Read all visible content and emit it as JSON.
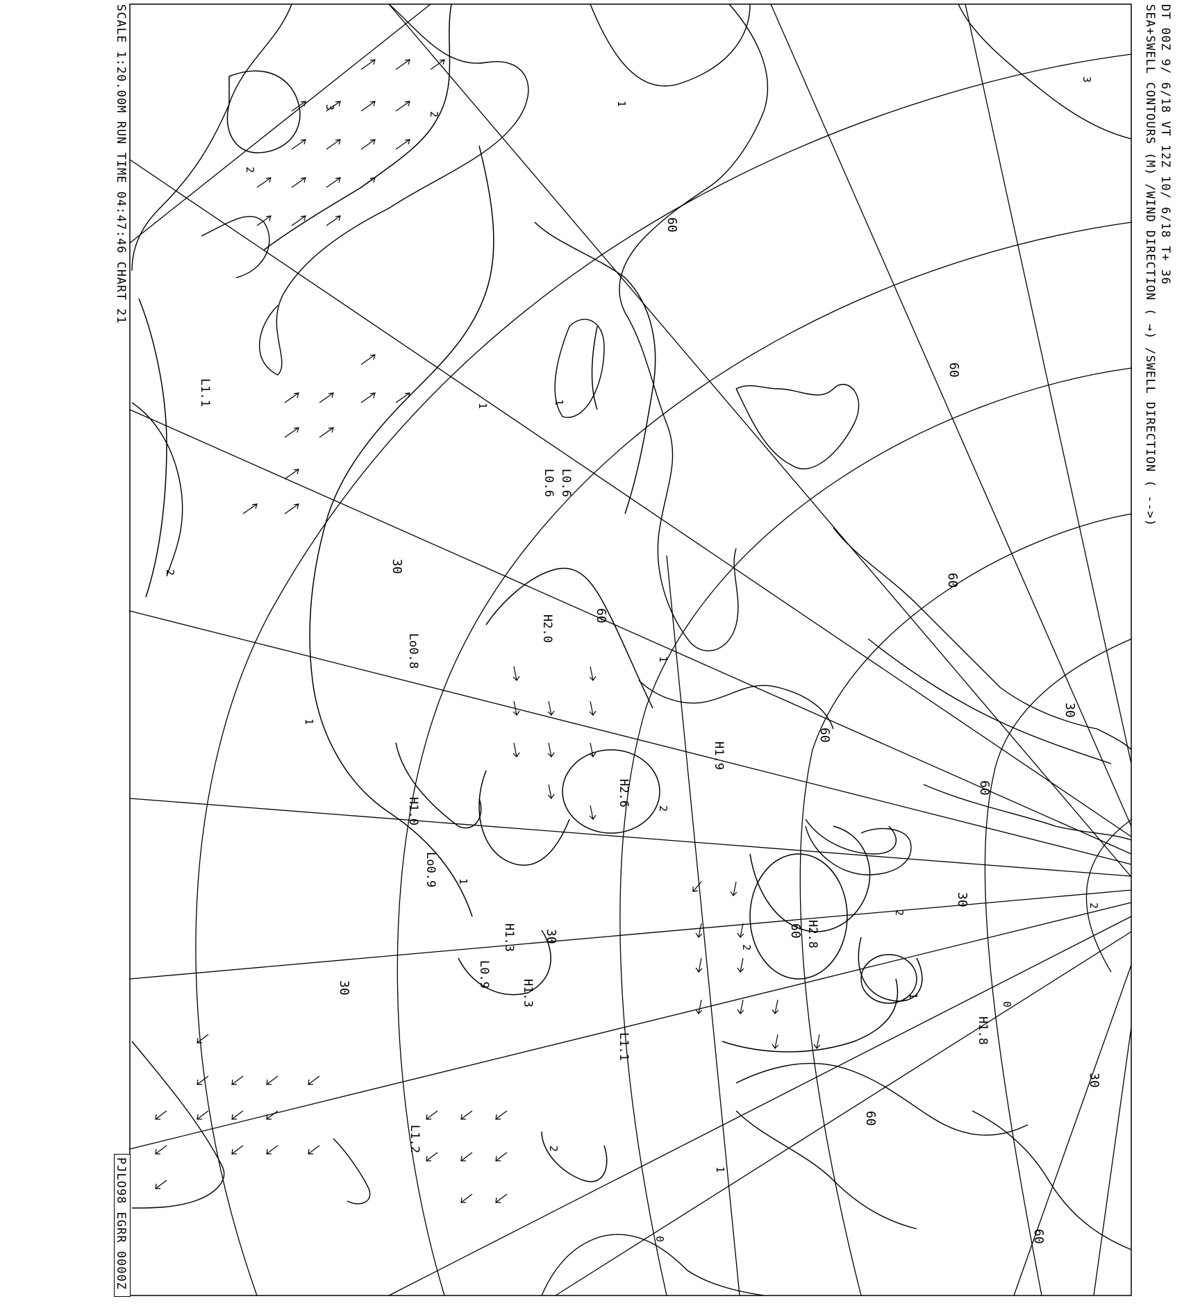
{
  "header": {
    "title_line1": "DT 00Z  9/ 6/18  VT  12Z 10/ 6/18  T+ 36",
    "title_line2": "SEA+SWELL CONTOURS (M) /WIND DIRECTION  ( →) /SWELL DIRECTION  ( -->)"
  },
  "left_margin": {
    "info": "SCALE 1:20.00M    RUN TIME 04:47:46    CHART 21",
    "chart_id": "PJLO98 EGRR 0000Z"
  },
  "colors": {
    "lines": "#000000",
    "background": "#ffffff"
  },
  "contour_labels": [
    "1",
    "1",
    "1",
    "1",
    "1",
    "1",
    "1",
    "1",
    "2",
    "2",
    "2",
    "2",
    "2",
    "2",
    "2",
    "2",
    "3",
    "3",
    "0",
    "0"
  ],
  "grid_labels": [
    "30",
    "30",
    "30",
    "60",
    "60",
    "60",
    "60",
    "60",
    "60",
    "60",
    "60",
    "60",
    "30",
    "30",
    "30"
  ],
  "pressure_centres": [
    {
      "label": "L1.1"
    },
    {
      "label": "L0.6"
    },
    {
      "label": "L0.6"
    },
    {
      "label": "H2.0"
    },
    {
      "label": "Lo0.8"
    },
    {
      "label": "H1.9"
    },
    {
      "label": "H2.6"
    },
    {
      "label": "H1.0"
    },
    {
      "label": "Lo0.9"
    },
    {
      "label": "H1.3"
    },
    {
      "label": "L0.9"
    },
    {
      "label": "H1.3"
    },
    {
      "label": "H2.8"
    },
    {
      "label": "L1.1"
    },
    {
      "label": "H1.8"
    },
    {
      "label": "L1.2"
    }
  ]
}
